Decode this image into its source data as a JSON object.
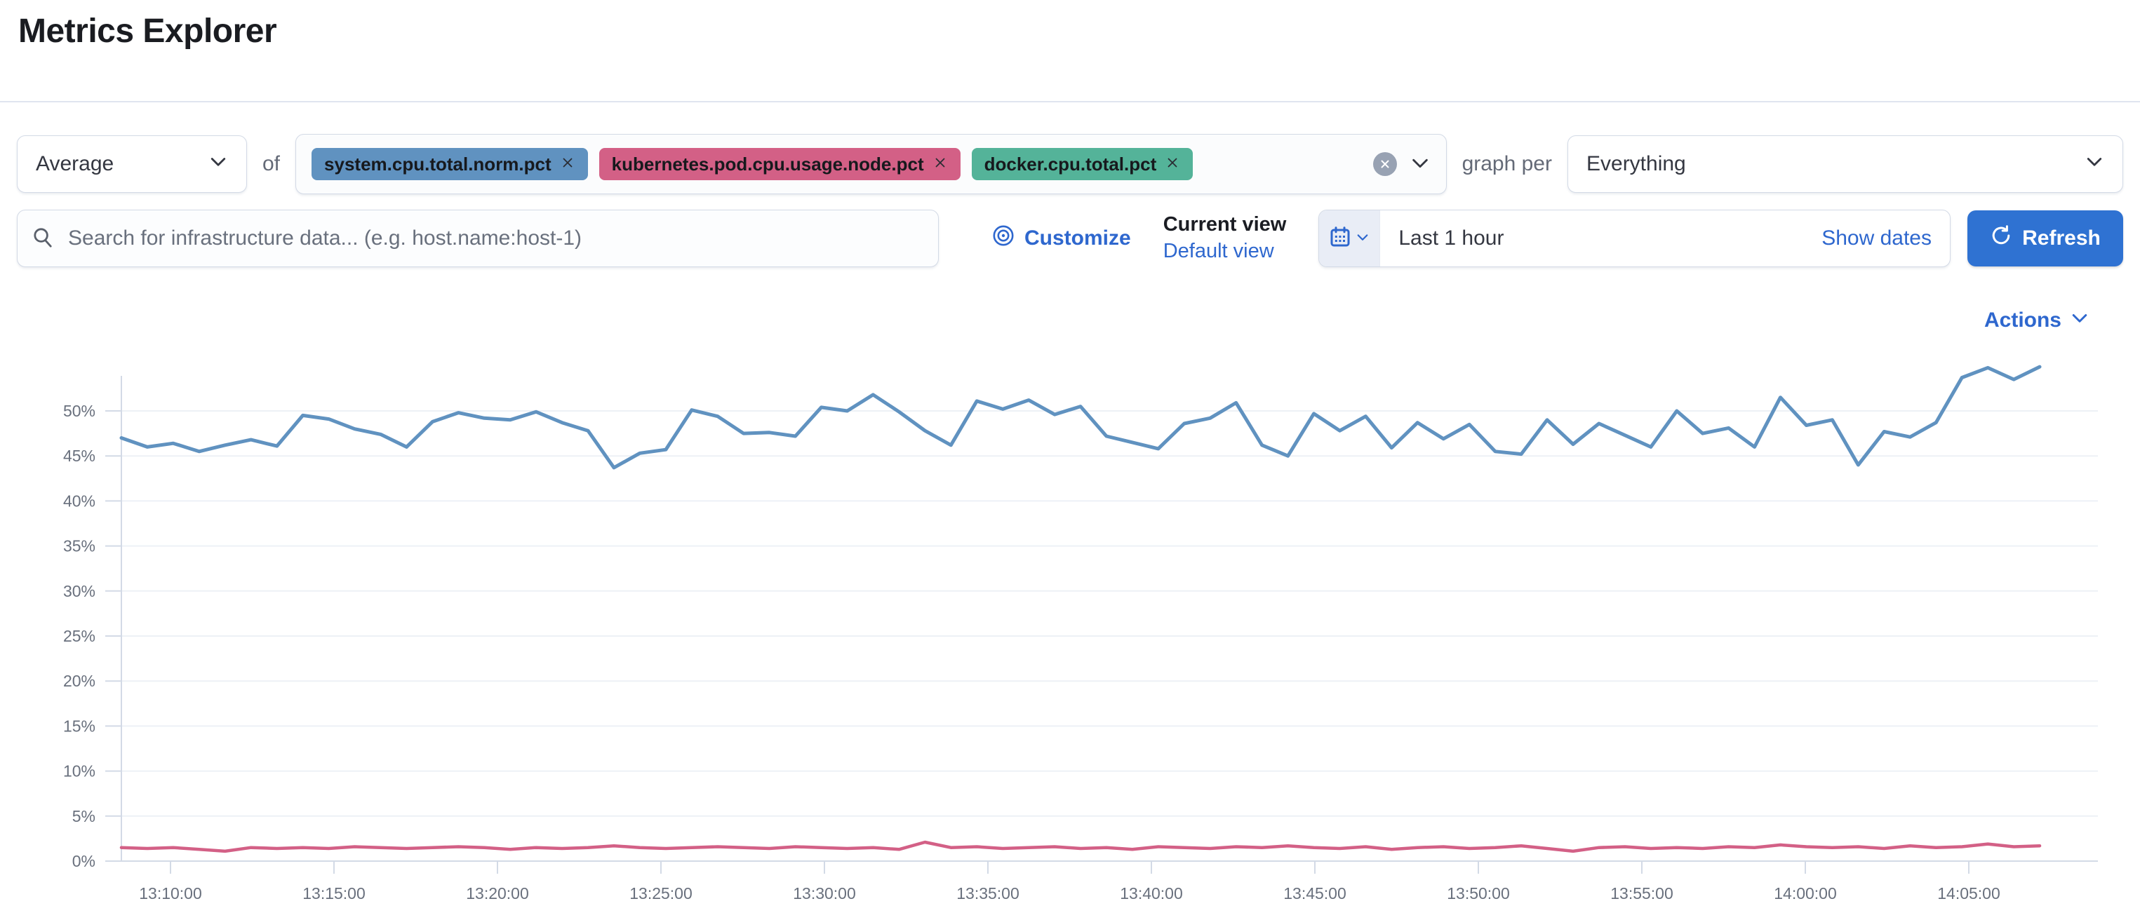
{
  "page": {
    "title": "Metrics Explorer"
  },
  "toolbar": {
    "aggregation_value": "Average",
    "of_label": "of",
    "metrics": [
      {
        "label": "system.cpu.total.norm.pct",
        "color": "#6092C0"
      },
      {
        "label": "kubernetes.pod.cpu.usage.node.pct",
        "color": "#D36086"
      },
      {
        "label": "docker.cpu.total.pct",
        "color": "#54B399"
      }
    ],
    "graph_per_label": "graph per",
    "graph_per_value": "Everything"
  },
  "search": {
    "placeholder": "Search for infrastructure data... (e.g. host.name:host-1)"
  },
  "view_controls": {
    "customize_label": "Customize",
    "current_view_label": "Current view",
    "default_view_label": "Default view"
  },
  "datepicker": {
    "value": "Last 1 hour",
    "show_dates_label": "Show dates",
    "refresh_label": "Refresh"
  },
  "actions": {
    "label": "Actions"
  },
  "colors": {
    "accent_blue": "#2E67CE",
    "refresh_button": "#2F72D2",
    "series_blue": "#6092C0",
    "series_pink": "#D36086",
    "badge_green": "#54B399"
  },
  "chart_data": {
    "type": "line",
    "title": "",
    "xlabel": "",
    "ylabel": "",
    "grid": true,
    "legend": false,
    "x_axis": {
      "start": "13:08:30",
      "end": "14:07:00",
      "tick_labels": [
        "13:10:00",
        "13:15:00",
        "13:20:00",
        "13:25:00",
        "13:30:00",
        "13:35:00",
        "13:40:00",
        "13:45:00",
        "13:50:00",
        "13:55:00",
        "14:00:00",
        "14:05:00"
      ]
    },
    "y_axis": {
      "unit": "%",
      "min": 0,
      "max": 54,
      "tick_labels": [
        "0%",
        "5%",
        "10%",
        "15%",
        "20%",
        "25%",
        "30%",
        "35%",
        "40%",
        "45%",
        "50%"
      ]
    },
    "series": [
      {
        "name": "system.cpu.total.norm.pct (avg)",
        "color": "#6092C0",
        "values": [
          47.0,
          46.0,
          46.4,
          45.5,
          46.2,
          46.8,
          46.1,
          49.5,
          49.1,
          48.0,
          47.4,
          46.0,
          48.8,
          49.8,
          49.2,
          49.0,
          49.9,
          48.7,
          47.8,
          43.7,
          45.3,
          45.7,
          50.1,
          49.4,
          47.5,
          47.6,
          47.2,
          50.4,
          50.0,
          51.8,
          49.9,
          47.8,
          46.2,
          51.1,
          50.2,
          51.2,
          49.6,
          50.5,
          47.2,
          46.5,
          45.8,
          48.6,
          49.2,
          50.9,
          46.2,
          45.0,
          49.7,
          47.8,
          49.4,
          45.9,
          48.7,
          46.9,
          48.5,
          45.5,
          45.2,
          49.0,
          46.3,
          48.6,
          47.3,
          46.0,
          50.0,
          47.5,
          48.1,
          46.0,
          51.5,
          48.4,
          49.0,
          44.0,
          47.7,
          47.1,
          48.7,
          53.7,
          54.8,
          53.5,
          54.9
        ]
      },
      {
        "name": "kubernetes.pod.cpu.usage.node.pct (avg)",
        "color": "#D36086",
        "values": [
          1.5,
          1.4,
          1.5,
          1.3,
          1.1,
          1.5,
          1.4,
          1.5,
          1.4,
          1.6,
          1.5,
          1.4,
          1.5,
          1.6,
          1.5,
          1.3,
          1.5,
          1.4,
          1.5,
          1.7,
          1.5,
          1.4,
          1.5,
          1.6,
          1.5,
          1.4,
          1.6,
          1.5,
          1.4,
          1.5,
          1.3,
          2.1,
          1.5,
          1.6,
          1.4,
          1.5,
          1.6,
          1.4,
          1.5,
          1.3,
          1.6,
          1.5,
          1.4,
          1.6,
          1.5,
          1.7,
          1.5,
          1.4,
          1.6,
          1.3,
          1.5,
          1.6,
          1.4,
          1.5,
          1.7,
          1.4,
          1.1,
          1.5,
          1.6,
          1.4,
          1.5,
          1.4,
          1.6,
          1.5,
          1.8,
          1.6,
          1.5,
          1.6,
          1.4,
          1.7,
          1.5,
          1.6,
          1.9,
          1.6,
          1.7
        ]
      }
    ]
  }
}
